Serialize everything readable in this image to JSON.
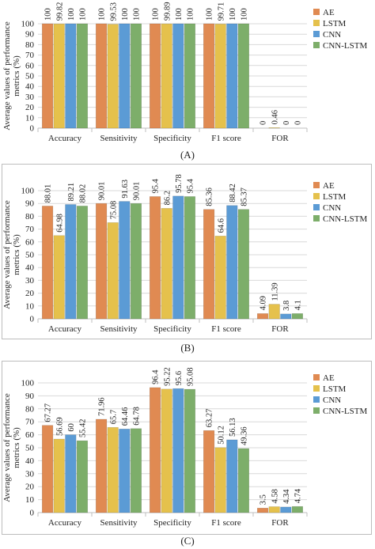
{
  "colors": [
    "#E08A52",
    "#E5C14C",
    "#5B9BD5",
    "#7DAE6A"
  ],
  "chart_data": [
    {
      "type": "bar",
      "caption": "(A)",
      "ylabel_lines": [
        "Average values of performance",
        "metrics (%)"
      ],
      "categories": [
        "Accuracy",
        "Sensitivity",
        "Specificity",
        "F1 score",
        "FOR"
      ],
      "ylim": [
        0,
        100
      ],
      "yticks": [
        0,
        10,
        20,
        30,
        40,
        50,
        60,
        70,
        80,
        90,
        100
      ],
      "legend": "right",
      "series": [
        {
          "name": "AE",
          "values": [
            100,
            100,
            100,
            100,
            0
          ]
        },
        {
          "name": "LSTM",
          "values": [
            99.82,
            99.53,
            99.89,
            99.71,
            0.46
          ]
        },
        {
          "name": "CNN",
          "values": [
            100,
            100,
            100,
            100,
            0
          ]
        },
        {
          "name": "CNN-LSTM",
          "values": [
            100,
            100,
            100,
            100,
            0
          ]
        }
      ]
    },
    {
      "type": "bar",
      "caption": "(B)",
      "ylabel_lines": [
        "Average values of performance",
        "metrics (%)"
      ],
      "categories": [
        "Accuracy",
        "Sensitivity",
        "Specificity",
        "F1 score",
        "FOR"
      ],
      "ylim": [
        0,
        100
      ],
      "yticks": [
        0,
        10,
        20,
        30,
        40,
        50,
        60,
        70,
        80,
        90,
        100
      ],
      "legend": "right",
      "series": [
        {
          "name": "AE",
          "values": [
            88.01,
            90.01,
            95.4,
            85.36,
            4.09
          ]
        },
        {
          "name": "LSTM",
          "values": [
            64.98,
            75.08,
            86.2,
            64.6,
            11.39
          ]
        },
        {
          "name": "CNN",
          "values": [
            89.21,
            91.63,
            95.78,
            88.42,
            3.8
          ]
        },
        {
          "name": "CNN-LSTM",
          "values": [
            88.02,
            90.01,
            95.4,
            85.37,
            4.1
          ]
        }
      ]
    },
    {
      "type": "bar",
      "caption": "(C)",
      "ylabel_lines": [
        "Average values of performance",
        "metrics (%)"
      ],
      "categories": [
        "Accuracy",
        "Sensitivity",
        "Specificity",
        "F1 score",
        "FOR"
      ],
      "ylim": [
        0,
        100
      ],
      "yticks": [
        0,
        10,
        20,
        30,
        40,
        50,
        60,
        70,
        80,
        90,
        100
      ],
      "legend": "right",
      "series": [
        {
          "name": "AE",
          "values": [
            67.27,
            71.96,
            96.4,
            63.27,
            3.5
          ]
        },
        {
          "name": "LSTM",
          "values": [
            56.69,
            65.7,
            95.22,
            50.12,
            4.58
          ]
        },
        {
          "name": "CNN",
          "values": [
            60,
            64.46,
            95.6,
            56.13,
            4.34
          ]
        },
        {
          "name": "CNN-LSTM",
          "values": [
            55.42,
            64.78,
            95.08,
            49.36,
            4.74
          ]
        }
      ]
    }
  ]
}
